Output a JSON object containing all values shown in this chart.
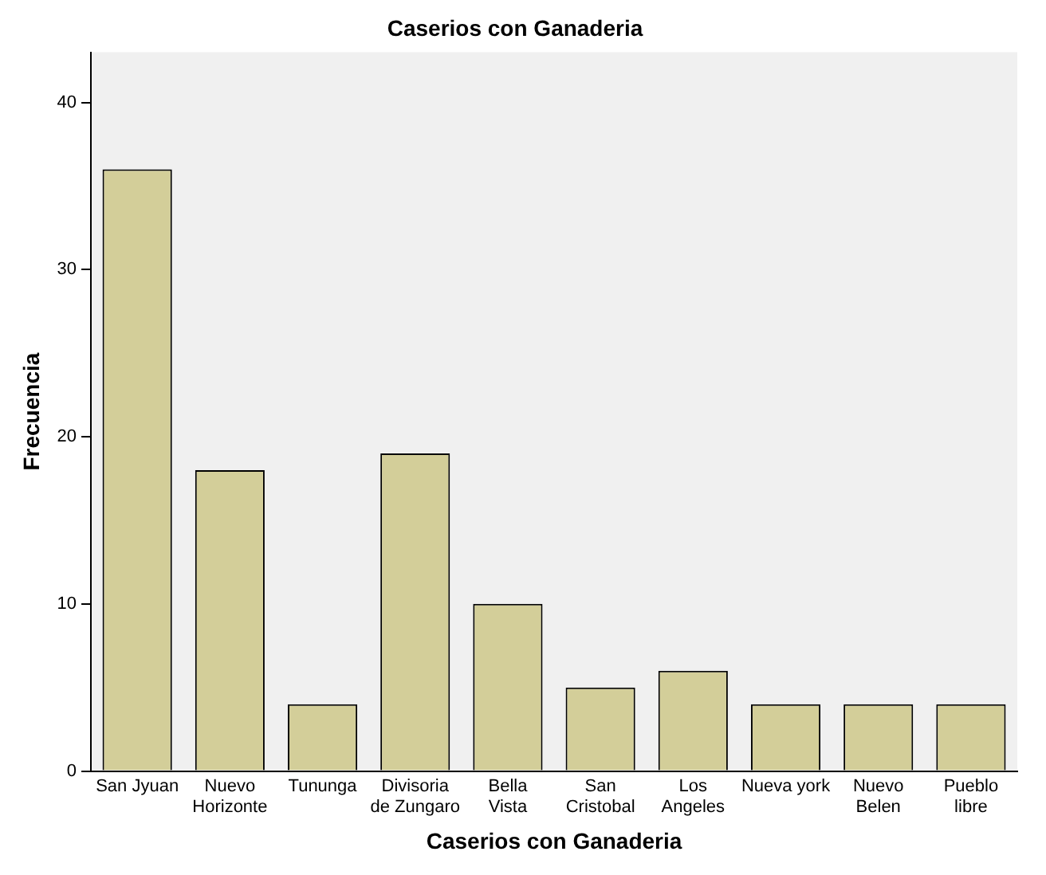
{
  "chart_data": {
    "type": "bar",
    "title": "Caserios con Ganaderia",
    "xlabel": "Caserios con Ganaderia",
    "ylabel": "Frecuencia",
    "categories": [
      "San Jyuan",
      "Nuevo Horizonte",
      "Tununga",
      "Divisoria de Zungaro",
      "Bella Vista",
      "San Cristobal",
      "Los Angeles",
      "Nueva york",
      "Nuevo Belen",
      "Pueblo libre"
    ],
    "values": [
      36,
      18,
      4,
      19,
      10,
      5,
      6,
      4,
      4,
      4
    ],
    "color": "#d3ce99",
    "ylim": [
      0,
      43
    ],
    "yticks": [
      0,
      10,
      20,
      30,
      40
    ],
    "grid": false,
    "legend": false
  }
}
